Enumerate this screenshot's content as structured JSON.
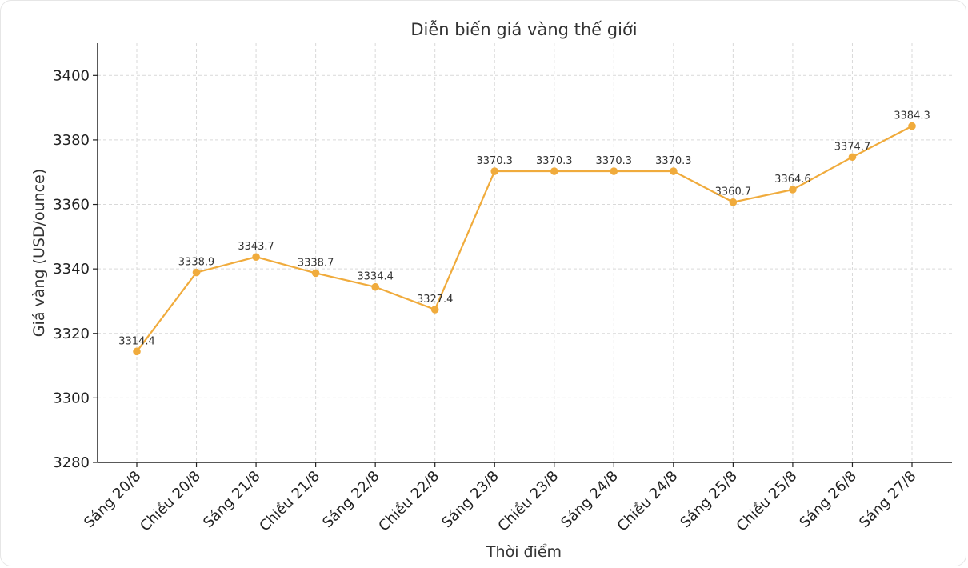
{
  "chart_data": {
    "type": "line",
    "title": "Diễn biến giá vàng thế giới",
    "xlabel": "Thời điểm",
    "ylabel": "Giá vàng (USD/ounce)",
    "ylim": [
      3280,
      3410
    ],
    "yticks": [
      3280,
      3300,
      3320,
      3340,
      3360,
      3380,
      3400
    ],
    "grid": true,
    "categories": [
      "Sáng 20/8",
      "Chiều 20/8",
      "Sáng 21/8",
      "Chiều 21/8",
      "Sáng 22/8",
      "Chiều 22/8",
      "Sáng 23/8",
      "Chiều 23/8",
      "Sáng 24/8",
      "Chiều 24/8",
      "Sáng 25/8",
      "Chiều 25/8",
      "Sáng 26/8",
      "Sáng 27/8"
    ],
    "series": [
      {
        "color": "#f0ab3c",
        "values": [
          3314.4,
          3338.9,
          3343.7,
          3338.7,
          3334.4,
          3327.4,
          3370.3,
          3370.3,
          3370.3,
          3370.3,
          3360.7,
          3364.6,
          3374.7,
          3384.3
        ],
        "labels": [
          "3314.4",
          "3338.9",
          "3343.7",
          "3338.7",
          "3334.4",
          "3327.4",
          "3370.3",
          "3370.3",
          "3370.3",
          "3370.3",
          "3360.7",
          "3364.6",
          "3374.7",
          "3384.3"
        ]
      }
    ]
  }
}
